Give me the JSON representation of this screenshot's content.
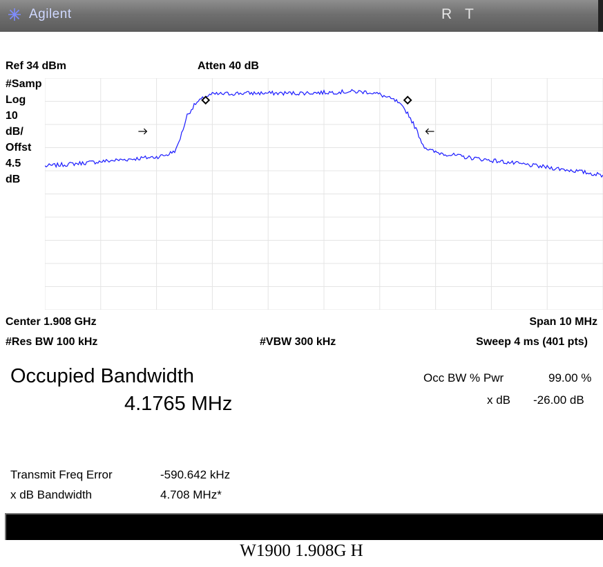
{
  "header": {
    "brand": "Agilent",
    "status_r": "R",
    "status_t": "T",
    "logo_icon": "agilent-spark-icon"
  },
  "top_readout": {
    "ref_level": "Ref 34 dBm",
    "attenuation": "Atten 40 dB"
  },
  "left_labels": [
    "#Samp",
    "Log",
    "10",
    "dB/",
    "Offst",
    "4.5",
    "dB"
  ],
  "bottom_readout": {
    "center": "Center 1.908 GHz",
    "span": "Span 10 MHz",
    "res_bw": "#Res BW 100 kHz",
    "vbw": "#VBW 300 kHz",
    "sweep": "Sweep 4 ms (401 pts)"
  },
  "results": {
    "title": "Occupied Bandwidth",
    "value": "4.1765 MHz",
    "occ_bw_label": "Occ BW % Pwr",
    "occ_bw_value": "99.00 %",
    "xdb_label": "x dB",
    "xdb_value": "-26.00 dB",
    "tx_freq_error_label": "Transmit Freq Error",
    "tx_freq_error_value": "-590.642 kHz",
    "xdb_bw_label": "x dB Bandwidth",
    "xdb_bw_value": "4.708 MHz*"
  },
  "caption": "W1900 1.908G H",
  "colors": {
    "trace": "#1a1aff",
    "grid": "#e4e4e4",
    "titlebar": "#6f6f6f"
  },
  "chart_data": {
    "type": "line",
    "xlabel": "",
    "ylabel": "",
    "x_unit": "MHz offset from center",
    "xlim": [
      -5,
      5
    ],
    "ylim": [
      -66,
      34
    ],
    "y_unit": "dBm",
    "grid": true,
    "x": [
      -5,
      -4.5,
      -4,
      -3.5,
      -3,
      -2.8,
      -2.65,
      -2.55,
      -2.45,
      -2.3,
      -2.12,
      -2,
      -1.5,
      -1,
      -0.5,
      0,
      0.5,
      0.8,
      1,
      1.3,
      1.5,
      1.65,
      1.78,
      1.88,
      2.0,
      2.5,
      3,
      3.5,
      4,
      4.5,
      5
    ],
    "y": [
      -4,
      -3,
      -2,
      -1,
      0,
      1,
      3,
      10,
      18,
      23,
      26,
      27,
      27.5,
      27.5,
      27.5,
      27.8,
      28.2,
      28,
      27,
      24,
      19,
      12,
      5,
      3,
      2,
      0,
      -1.5,
      -3,
      -4.5,
      -6,
      -8
    ],
    "markers": [
      {
        "type": "diamond",
        "x": -2.12,
        "y": 24.5
      },
      {
        "type": "diamond",
        "x": 1.5,
        "y": 24.5
      },
      {
        "type": "arrow-right",
        "x": -3.25,
        "y": 11
      },
      {
        "type": "arrow-left",
        "x": 1.9,
        "y": 11
      }
    ]
  }
}
